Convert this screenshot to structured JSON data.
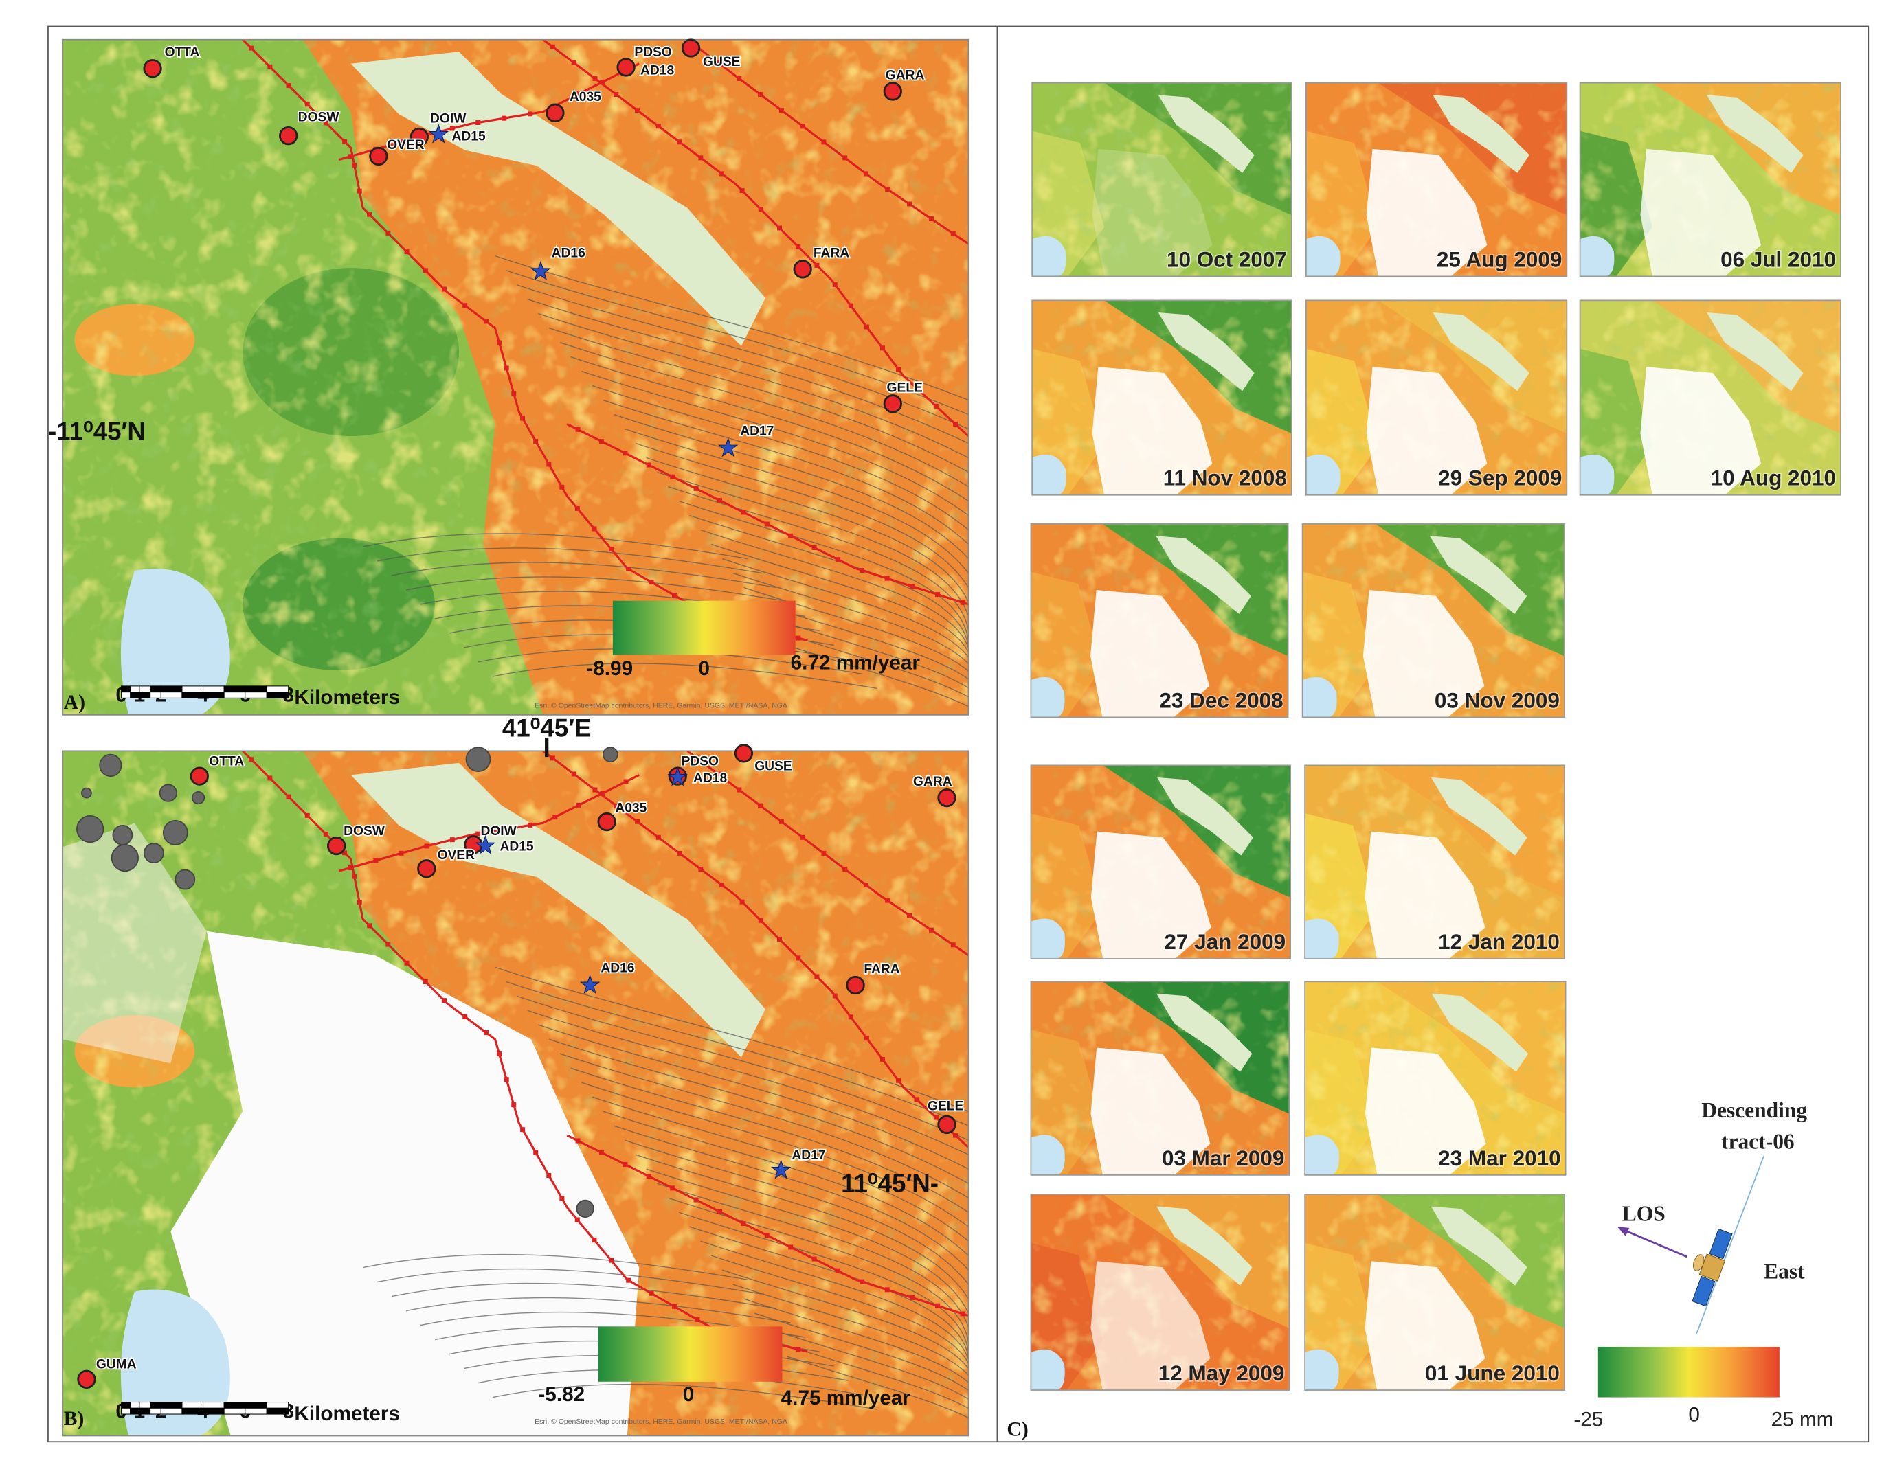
{
  "panel_a": {
    "label": "A)",
    "stations": [
      "OTTA",
      "PDSO",
      "GUSE",
      "AD18",
      "GARA",
      "A035",
      "DOSW",
      "DOIW",
      "AD15",
      "OVER",
      "AD16",
      "FARA",
      "GELE",
      "AD17"
    ],
    "latitude_label": "-11⁰45′N",
    "colorbar": {
      "min": "-8.99",
      "mid": "0",
      "max": "6.72 mm/year"
    },
    "scale_bar": {
      "ticks": [
        "0",
        "1",
        "2",
        "4",
        "6",
        "8"
      ],
      "unit": "Kilometers"
    },
    "attribution": "Esri, © OpenStreetMap contributors, HERE, Garmin, USGS, METI/NASA, NGA"
  },
  "longitude_label": "41⁰45′E",
  "panel_b": {
    "label": "B)",
    "stations": [
      "OTTA",
      "PDSO",
      "AD18",
      "GUSE",
      "GARA",
      "A035",
      "DOSW",
      "DOIW",
      "AD15",
      "OVER",
      "AD16",
      "FARA",
      "GELE",
      "AD17",
      "GUMA"
    ],
    "latitude_label": "11⁰45′N-",
    "colorbar": {
      "min": "-5.82",
      "mid": "0",
      "max": "4.75 mm/year"
    },
    "scale_bar": {
      "ticks": [
        "0",
        "1",
        "2",
        "4",
        "6",
        "8"
      ],
      "unit": "Kilometers"
    },
    "attribution": "Esri, © OpenStreetMap contributors, HERE, Garmin, USGS, METI/NASA, NGA"
  },
  "panel_c": {
    "label": "C)",
    "thumbnails": [
      "10 Oct 2007",
      "25 Aug 2009",
      "06 Jul 2010",
      "11 Nov 2008",
      "29 Sep 2009",
      "10 Aug 2010",
      "23 Dec 2008",
      "03 Nov 2009",
      "27 Jan 2009",
      "12 Jan 2010",
      "03 Mar 2009",
      "23 Mar 2010",
      "12 May 2009",
      "01 June 2010"
    ],
    "colorbar": {
      "min": "-25",
      "mid": "0",
      "max": "25 mm"
    },
    "orbit": {
      "title_lines": [
        "Descending",
        "tract-06"
      ],
      "los": "LOS",
      "east": "East"
    }
  }
}
